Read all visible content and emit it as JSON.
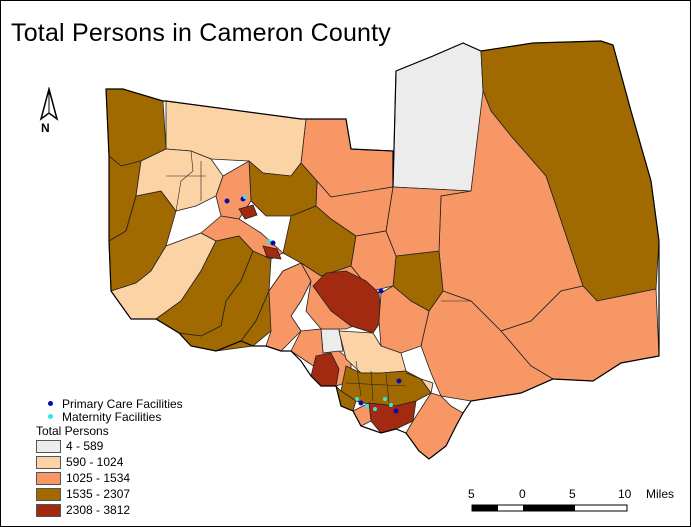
{
  "title": "Total Persons in Cameron County",
  "north_arrow": {
    "label": "N"
  },
  "legend": {
    "facilities": [
      {
        "label": "Primary Care Facilities",
        "color": "#0a0aa8",
        "icon": "dot-icon"
      },
      {
        "label": "Maternity Facilities",
        "color": "#33e6e6",
        "icon": "dot-icon"
      }
    ],
    "title": "Total Persons",
    "classes": [
      {
        "label": "4 - 589",
        "color": "#ececec"
      },
      {
        "label": "590 - 1024",
        "color": "#fcd3a4"
      },
      {
        "label": "1025 - 1534",
        "color": "#f89766"
      },
      {
        "label": "1535 - 2307",
        "color": "#a06a00"
      },
      {
        "label": "2308 - 3812",
        "color": "#a12a10"
      }
    ]
  },
  "scale_bar": {
    "ticks": [
      "5",
      "0",
      "5",
      "10"
    ],
    "unit": "Miles"
  },
  "colors": {
    "tract_outline": "#222222",
    "county_outline": "#000000"
  }
}
